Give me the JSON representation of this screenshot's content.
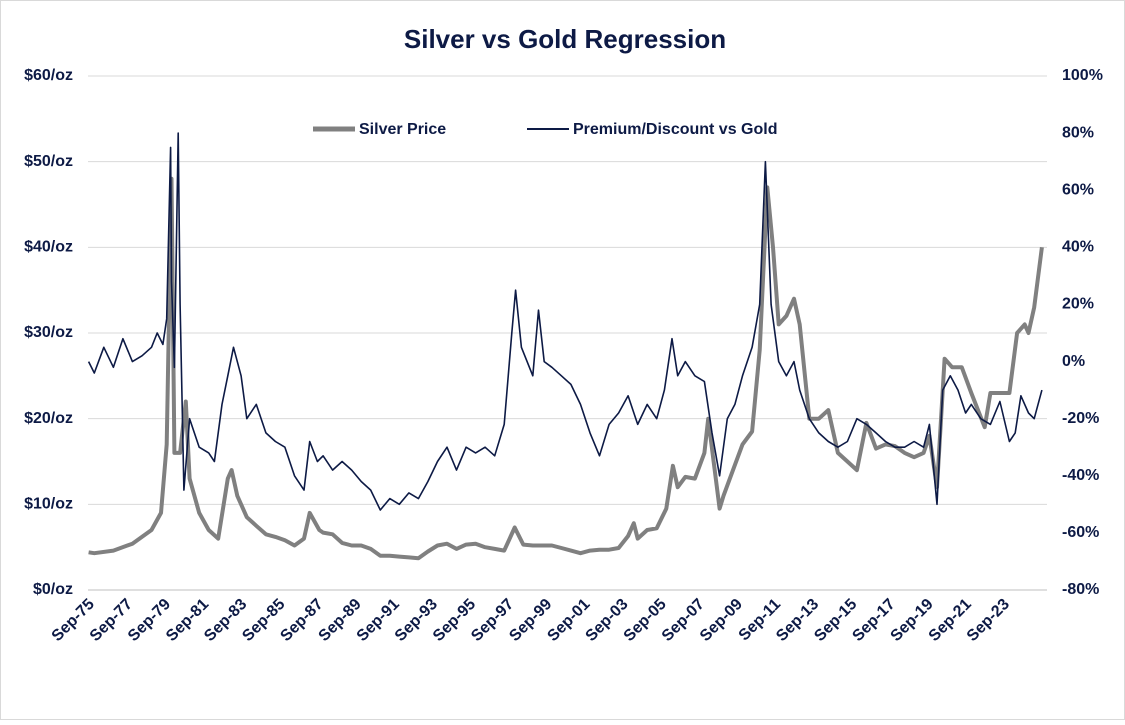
{
  "chart_data": {
    "type": "line",
    "title": "Silver vs Gold Regression",
    "legend": "top",
    "grid": true,
    "xlim": [
      1975.67,
      2025.97
    ],
    "xticks": [
      {
        "value": 1975.67,
        "label": "Sep-75"
      },
      {
        "value": 1977.67,
        "label": "Sep-77"
      },
      {
        "value": 1979.67,
        "label": "Sep-79"
      },
      {
        "value": 1981.67,
        "label": "Sep-81"
      },
      {
        "value": 1983.67,
        "label": "Sep-83"
      },
      {
        "value": 1985.67,
        "label": "Sep-85"
      },
      {
        "value": 1987.67,
        "label": "Sep-87"
      },
      {
        "value": 1989.67,
        "label": "Sep-89"
      },
      {
        "value": 1991.67,
        "label": "Sep-91"
      },
      {
        "value": 1993.67,
        "label": "Sep-93"
      },
      {
        "value": 1995.67,
        "label": "Sep-95"
      },
      {
        "value": 1997.67,
        "label": "Sep-97"
      },
      {
        "value": 1999.67,
        "label": "Sep-99"
      },
      {
        "value": 2001.67,
        "label": "Sep-01"
      },
      {
        "value": 2003.67,
        "label": "Sep-03"
      },
      {
        "value": 2005.67,
        "label": "Sep-05"
      },
      {
        "value": 2007.67,
        "label": "Sep-07"
      },
      {
        "value": 2009.67,
        "label": "Sep-09"
      },
      {
        "value": 2011.67,
        "label": "Sep-11"
      },
      {
        "value": 2013.67,
        "label": "Sep-13"
      },
      {
        "value": 2015.67,
        "label": "Sep-15"
      },
      {
        "value": 2017.67,
        "label": "Sep-17"
      },
      {
        "value": 2019.67,
        "label": "Sep-19"
      },
      {
        "value": 2021.67,
        "label": "Sep-21"
      },
      {
        "value": 2023.67,
        "label": "Sep-23"
      }
    ],
    "ylim": [
      0,
      60
    ],
    "yticks": [
      {
        "value": 0,
        "label": "$0/oz"
      },
      {
        "value": 10,
        "label": "$10/oz"
      },
      {
        "value": 20,
        "label": "$20/oz"
      },
      {
        "value": 30,
        "label": "$30/oz"
      },
      {
        "value": 40,
        "label": "$40/oz"
      },
      {
        "value": 50,
        "label": "$50/oz"
      },
      {
        "value": 60,
        "label": "$60/oz"
      }
    ],
    "y2lim": [
      -80,
      100
    ],
    "y2ticks": [
      {
        "value": -80,
        "label": "-80%"
      },
      {
        "value": -60,
        "label": "-60%"
      },
      {
        "value": -40,
        "label": "-40%"
      },
      {
        "value": -20,
        "label": "-20%"
      },
      {
        "value": 0,
        "label": "0%"
      },
      {
        "value": 20,
        "label": "20%"
      },
      {
        "value": 40,
        "label": "40%"
      },
      {
        "value": 60,
        "label": "60%"
      },
      {
        "value": 80,
        "label": "80%"
      },
      {
        "value": 100,
        "label": "100%"
      }
    ],
    "series": [
      {
        "name": "Silver Price",
        "color": "#808080",
        "axis": "y",
        "x": [
          1975.7,
          1976,
          1977,
          1978,
          1979,
          1979.5,
          1979.8,
          1980.05,
          1980.2,
          1980.5,
          1980.8,
          1981,
          1981.5,
          1982,
          1982.5,
          1983,
          1983.2,
          1983.5,
          1984,
          1984.5,
          1985,
          1985.5,
          1986,
          1986.5,
          1987,
          1987.3,
          1987.8,
          1988,
          1988.5,
          1989,
          1989.5,
          1990,
          1990.5,
          1991,
          1991.5,
          1992,
          1992.5,
          1993,
          1993.5,
          1994,
          1994.5,
          1995,
          1995.5,
          1996,
          1996.5,
          1997,
          1997.5,
          1998.05,
          1998.5,
          1999,
          1999.5,
          2000,
          2000.5,
          2001,
          2001.5,
          2002,
          2002.5,
          2003,
          2003.5,
          2004,
          2004.3,
          2004.5,
          2005,
          2005.5,
          2006,
          2006.35,
          2006.6,
          2007,
          2007.5,
          2008,
          2008.2,
          2008.8,
          2009,
          2009.5,
          2010,
          2010.5,
          2010.9,
          2011.3,
          2011.6,
          2011.9,
          2012.3,
          2012.7,
          2013,
          2013.5,
          2014,
          2014.5,
          2015,
          2015.5,
          2016,
          2016.5,
          2017,
          2017.5,
          2018,
          2018.5,
          2019,
          2019.5,
          2019.8,
          2020.2,
          2020.6,
          2021,
          2021.5,
          2022,
          2022.7,
          2023,
          2023.5,
          2024,
          2024.4,
          2024.8,
          2025,
          2025.3,
          2025.7
        ],
        "values": [
          4.4,
          4.3,
          4.6,
          5.4,
          7.0,
          9,
          17,
          48,
          16,
          16,
          22,
          13,
          9,
          7,
          6,
          13,
          14,
          11,
          8.5,
          7.5,
          6.5,
          6.2,
          5.8,
          5.2,
          6,
          9,
          7,
          6.7,
          6.5,
          5.5,
          5.2,
          5.2,
          4.8,
          4.0,
          4.0,
          3.9,
          3.8,
          3.7,
          4.5,
          5.2,
          5.4,
          4.8,
          5.3,
          5.4,
          5.0,
          4.8,
          4.6,
          7.3,
          5.3,
          5.2,
          5.2,
          5.2,
          4.9,
          4.6,
          4.3,
          4.6,
          4.7,
          4.7,
          4.9,
          6.3,
          7.8,
          6.0,
          7.0,
          7.2,
          9.5,
          14.5,
          12,
          13.2,
          13,
          16,
          20,
          9.5,
          11,
          14,
          17,
          18.5,
          28,
          47,
          40,
          31,
          32,
          34,
          31,
          20,
          20,
          21,
          16,
          15,
          14,
          19.5,
          16.5,
          17,
          16.8,
          16,
          15.5,
          16,
          18,
          12,
          27,
          26,
          26,
          23,
          19,
          23,
          23,
          23,
          30,
          31,
          30,
          33,
          40
        ]
      },
      {
        "name": "Premium/Discount vs Gold",
        "color": "#0d1a45",
        "axis": "y2",
        "x": [
          1975.7,
          1976,
          1976.5,
          1977,
          1977.5,
          1978,
          1978.5,
          1979,
          1979.3,
          1979.6,
          1979.8,
          1980.0,
          1980.05,
          1980.2,
          1980.4,
          1980.5,
          1980.7,
          1981,
          1981.5,
          1982,
          1982.3,
          1982.7,
          1983,
          1983.3,
          1983.7,
          1984,
          1984.5,
          1985,
          1985.5,
          1986,
          1986.5,
          1987,
          1987.3,
          1987.7,
          1988,
          1988.5,
          1989,
          1989.5,
          1990,
          1990.5,
          1991,
          1991.5,
          1992,
          1992.5,
          1993,
          1993.5,
          1994,
          1994.5,
          1995,
          1995.5,
          1996,
          1996.5,
          1997,
          1997.5,
          1997.9,
          1998.1,
          1998.4,
          1999,
          1999.3,
          1999.6,
          2000,
          2000.5,
          2001,
          2001.5,
          2002,
          2002.5,
          2003,
          2003.5,
          2004,
          2004.5,
          2005,
          2005.5,
          2005.9,
          2006.3,
          2006.6,
          2007,
          2007.5,
          2008,
          2008.4,
          2008.8,
          2009.2,
          2009.6,
          2010,
          2010.5,
          2010.9,
          2011.2,
          2011.5,
          2011.9,
          2012.3,
          2012.7,
          2013,
          2013.5,
          2014,
          2014.5,
          2015,
          2015.5,
          2016,
          2016.5,
          2017,
          2017.5,
          2018,
          2018.5,
          2019,
          2019.5,
          2019.8,
          2020.2,
          2020.5,
          2020.9,
          2021.3,
          2021.7,
          2022,
          2022.5,
          2023,
          2023.5,
          2024,
          2024.3,
          2024.6,
          2025,
          2025.3,
          2025.7
        ],
        "values": [
          0,
          -4,
          5,
          -2,
          8,
          0,
          2,
          5,
          10,
          6,
          15,
          75,
          28,
          -2,
          80,
          20,
          -45,
          -20,
          -30,
          -32,
          -35,
          -15,
          -5,
          5,
          -5,
          -20,
          -15,
          -25,
          -28,
          -30,
          -40,
          -45,
          -28,
          -35,
          -33,
          -38,
          -35,
          -38,
          -42,
          -45,
          -52,
          -48,
          -50,
          -46,
          -48,
          -42,
          -35,
          -30,
          -38,
          -30,
          -32,
          -30,
          -33,
          -22,
          10,
          25,
          5,
          -5,
          18,
          0,
          -2,
          -5,
          -8,
          -15,
          -25,
          -33,
          -22,
          -18,
          -12,
          -22,
          -15,
          -20,
          -10,
          8,
          -5,
          0,
          -5,
          -7,
          -25,
          -40,
          -20,
          -15,
          -5,
          5,
          20,
          70,
          20,
          0,
          -5,
          0,
          -10,
          -20,
          -25,
          -28,
          -30,
          -28,
          -20,
          -22,
          -25,
          -28,
          -30,
          -30,
          -28,
          -30,
          -22,
          -50,
          -10,
          -5,
          -10,
          -18,
          -15,
          -20,
          -22,
          -14,
          -28,
          -25,
          -12,
          -18,
          -20,
          -10
        ]
      }
    ]
  }
}
